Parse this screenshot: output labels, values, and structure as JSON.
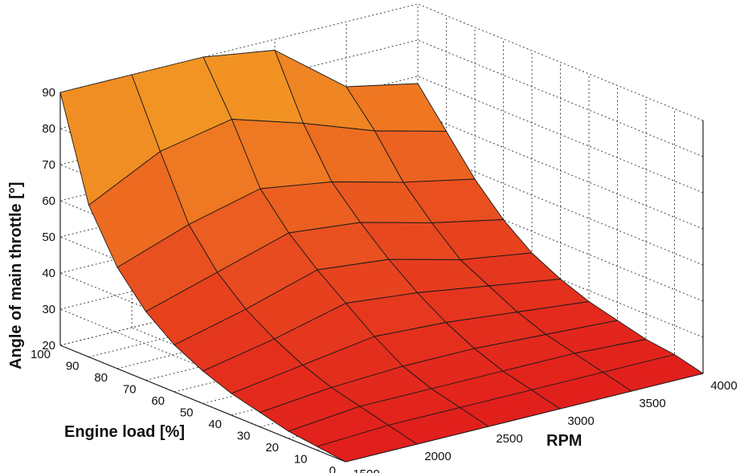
{
  "chart_data": {
    "type": "surface",
    "title": "",
    "xlabel": "RPM",
    "ylabel": "Engine load [%]",
    "zlabel": "Angle of main throttle [°]",
    "rpm": [
      1500,
      2000,
      2500,
      3000,
      3500,
      4000
    ],
    "load": [
      0,
      10,
      20,
      30,
      40,
      50,
      60,
      70,
      80,
      90,
      100
    ],
    "throttle_deg": [
      [
        20,
        20,
        20,
        20,
        20,
        20
      ],
      [
        21,
        22,
        22,
        22,
        22,
        22
      ],
      [
        22,
        24,
        24,
        24,
        24,
        23
      ],
      [
        24,
        26,
        27,
        27,
        26,
        25
      ],
      [
        26,
        29,
        32,
        31,
        29,
        27
      ],
      [
        29,
        33,
        38,
        36,
        33,
        30
      ],
      [
        33,
        38,
        44,
        42,
        37,
        34
      ],
      [
        39,
        45,
        51,
        49,
        44,
        40
      ],
      [
        48,
        55,
        60,
        57,
        52,
        48
      ],
      [
        62,
        72,
        76,
        70,
        63,
        58
      ],
      [
        90,
        90,
        90,
        87,
        72,
        68
      ]
    ],
    "xticks": [
      "1500",
      "2000",
      "2500",
      "3000",
      "3500",
      "4000"
    ],
    "yticks": [
      "0",
      "10",
      "20",
      "30",
      "40",
      "50",
      "60",
      "70",
      "80",
      "90",
      "100"
    ],
    "zticks": [
      "20",
      "30",
      "40",
      "50",
      "60",
      "70",
      "80",
      "90"
    ],
    "xlim": [
      1500,
      4000
    ],
    "ylim": [
      0,
      100
    ],
    "zlim": [
      20,
      90
    ],
    "colormap": [
      "#e11e1c",
      "#e8491f",
      "#ef7a22",
      "#f2a124"
    ],
    "grid": true,
    "legend": "none"
  }
}
